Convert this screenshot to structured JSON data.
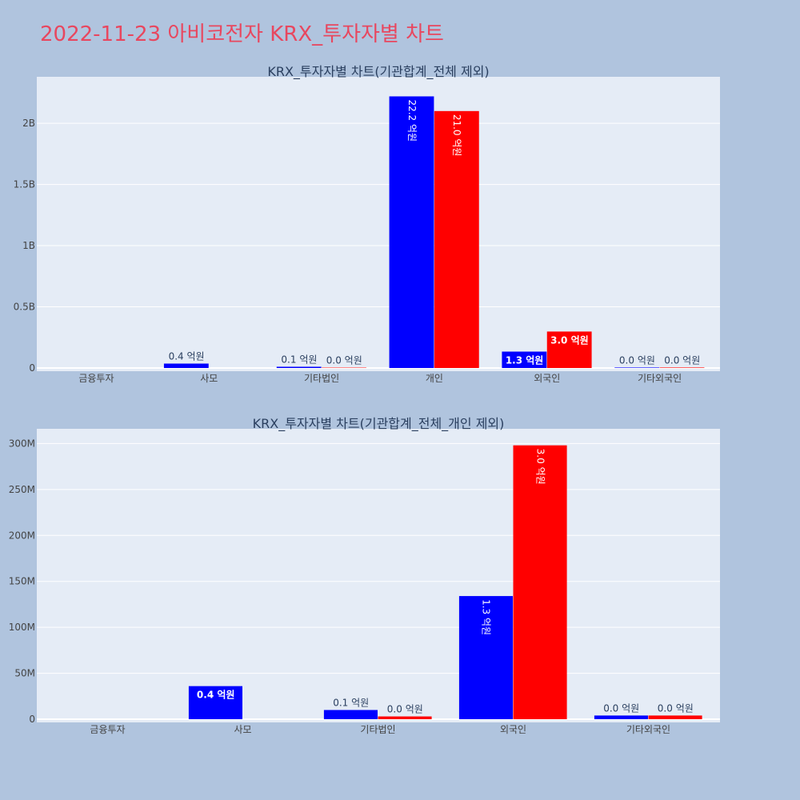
{
  "title": "2022-11-23 아비코전자 KRX_투자자별 차트",
  "chart_data": [
    {
      "type": "bar",
      "title": "KRX_투자자별 차트(기관합계_전체 제외)",
      "categories": [
        "금융투자",
        "사모",
        "기타법인",
        "개인",
        "외국인",
        "기타외국인"
      ],
      "series": [
        {
          "color": "#0000ff",
          "values": [
            0,
            36000000,
            10000000,
            2220000000,
            134000000,
            4000000
          ],
          "labels": [
            "",
            "0.4 억원",
            "0.1 억원",
            "22.2 억원",
            "1.3 억원",
            "0.0 억원"
          ]
        },
        {
          "color": "#ff0000",
          "values": [
            0,
            0,
            3000000,
            2100000000,
            298000000,
            4000000
          ],
          "labels": [
            "",
            "",
            "0.0 억원",
            "21.0 억원",
            "3.0 억원",
            "0.0 억원"
          ]
        }
      ],
      "ylim": [
        0,
        2380000000
      ],
      "yticks": [
        0,
        500000000,
        1000000000,
        1500000000,
        2000000000
      ],
      "yticklabels": [
        "0",
        "0.5B",
        "1B",
        "1.5B",
        "2B"
      ],
      "grid": true,
      "background": "#e5ecf6"
    },
    {
      "type": "bar",
      "title": "KRX_투자자별 차트(기관합계_전체_개인 제외)",
      "categories": [
        "금융투자",
        "사모",
        "기타법인",
        "외국인",
        "기타외국인"
      ],
      "series": [
        {
          "color": "#0000ff",
          "values": [
            0,
            36000000,
            10000000,
            134000000,
            4000000
          ],
          "labels": [
            "",
            "0.4 억원",
            "0.1 억원",
            "1.3 억원",
            "0.0 억원"
          ]
        },
        {
          "color": "#ff0000",
          "values": [
            0,
            0,
            3000000,
            298000000,
            4000000
          ],
          "labels": [
            "",
            "",
            "0.0 억원",
            "3.0 억원",
            "0.0 억원"
          ]
        }
      ],
      "ylim": [
        0,
        316000000
      ],
      "yticks": [
        0,
        50000000,
        100000000,
        150000000,
        200000000,
        250000000,
        300000000
      ],
      "yticklabels": [
        "0",
        "50M",
        "100M",
        "150M",
        "200M",
        "250M",
        "300M"
      ],
      "grid": true,
      "background": "#e5ecf6"
    }
  ]
}
